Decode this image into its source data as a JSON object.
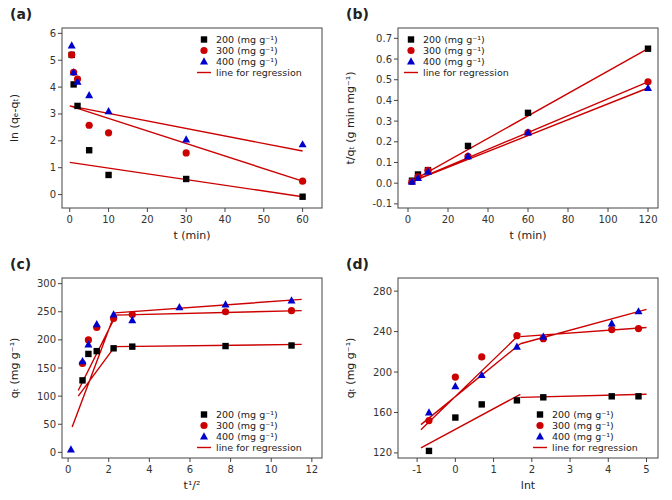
{
  "chart_data": [
    {
      "type": "scatter",
      "title": "(a)",
      "x_label": "t (min)",
      "y_label": "ln (qₑ-qₜ)",
      "xlim": [
        -2,
        65
      ],
      "ylim": [
        -0.5,
        6.2
      ],
      "xticks": [
        0,
        10,
        20,
        30,
        40,
        50,
        60
      ],
      "yticks": [
        0,
        1,
        2,
        3,
        4,
        5,
        6
      ],
      "grid": false,
      "legend": "upper right",
      "series": [
        {
          "name": "200 (mg g⁻¹)",
          "type": "scatter",
          "color": "#000000",
          "marker": "square",
          "x": [
            0.5,
            1,
            2,
            5,
            10,
            30,
            60
          ],
          "values": [
            5.2,
            4.1,
            3.3,
            1.65,
            0.73,
            0.58,
            -0.08
          ]
        },
        {
          "name": "300 (mg g⁻¹)",
          "type": "scatter",
          "color": "#cc0000",
          "marker": "circle",
          "x": [
            0.5,
            1,
            2,
            5,
            10,
            30,
            60
          ],
          "values": [
            5.2,
            4.55,
            4.3,
            2.58,
            2.3,
            1.55,
            0.5
          ]
        },
        {
          "name": "400 (mg g⁻¹)",
          "type": "scatter",
          "color": "#0000cc",
          "marker": "triangle",
          "x": [
            0.5,
            1,
            2,
            5,
            10,
            30,
            60
          ],
          "values": [
            5.55,
            4.55,
            4.2,
            3.7,
            3.1,
            2.05,
            1.87
          ]
        },
        {
          "name": "line for regression",
          "type": "line",
          "color": "#cc0000",
          "line_style": "solid",
          "x": [
            0,
            60,
            null,
            0,
            60,
            null,
            0,
            60
          ],
          "values": [
            1.2,
            -0.08,
            null,
            3.3,
            0.5,
            null,
            3.3,
            1.62
          ]
        }
      ]
    },
    {
      "type": "scatter",
      "title": "(b)",
      "x_label": "t (min)",
      "y_label": "t/qₜ (g min mg⁻¹)",
      "xlim": [
        -5,
        125
      ],
      "ylim": [
        -0.12,
        0.75
      ],
      "xticks": [
        0,
        20,
        40,
        60,
        80,
        100,
        120
      ],
      "yticks": [
        -0.1,
        {
          "value": 0.0,
          "label": "0.0"
        },
        0.1,
        0.2,
        0.3,
        0.4,
        0.5,
        0.6,
        0.7
      ],
      "grid": false,
      "legend": "upper left",
      "series": [
        {
          "name": "200 (mg g⁻¹)",
          "type": "scatter",
          "color": "#000000",
          "marker": "square",
          "x": [
            2,
            5,
            10,
            30,
            60,
            120
          ],
          "values": [
            0.012,
            0.042,
            0.063,
            0.18,
            0.34,
            0.65
          ]
        },
        {
          "name": "300 (mg g⁻¹)",
          "type": "scatter",
          "color": "#cc0000",
          "marker": "circle",
          "x": [
            2,
            5,
            10,
            30,
            60,
            120
          ],
          "values": [
            0.008,
            0.03,
            0.062,
            0.13,
            0.245,
            0.49
          ]
        },
        {
          "name": "400 (mg g⁻¹)",
          "type": "scatter",
          "color": "#0000cc",
          "marker": "triangle",
          "x": [
            2,
            5,
            10,
            30,
            60,
            120
          ],
          "values": [
            0.007,
            0.025,
            0.055,
            0.13,
            0.245,
            0.46
          ]
        },
        {
          "name": "line for regression",
          "type": "line",
          "color": "#cc0000",
          "line_style": "solid",
          "x": [
            0,
            120,
            null,
            0,
            120,
            null,
            0,
            120
          ],
          "values": [
            0.0,
            0.65,
            null,
            0.0,
            0.49,
            null,
            0.0,
            0.46
          ]
        }
      ]
    },
    {
      "type": "scatter",
      "title": "(c)",
      "x_label": "t¹/²",
      "y_label": "qₜ (mg g⁻¹)",
      "xlim": [
        -0.3,
        12.5
      ],
      "ylim": [
        -10,
        310
      ],
      "xticks": [
        0,
        2,
        4,
        6,
        8,
        10,
        12
      ],
      "yticks": [
        0,
        50,
        100,
        150,
        200,
        250,
        300
      ],
      "grid": false,
      "legend": "lower right",
      "series": [
        {
          "name": "200 (mg g⁻¹)",
          "type": "scatter",
          "color": "#000000",
          "marker": "square",
          "x": [
            0.71,
            1.0,
            1.41,
            2.24,
            3.16,
            7.75,
            11.0
          ],
          "values": [
            128,
            175,
            180,
            185,
            188,
            189,
            190
          ]
        },
        {
          "name": "300 (mg g⁻¹)",
          "type": "scatter",
          "color": "#cc0000",
          "marker": "circle",
          "x": [
            0.71,
            1.0,
            1.41,
            2.24,
            3.16,
            7.75,
            11.0
          ],
          "values": [
            158,
            200,
            222,
            238,
            245,
            250,
            252
          ]
        },
        {
          "name": "400 (mg g⁻¹)",
          "type": "scatter",
          "color": "#0000cc",
          "marker": "triangle",
          "x": [
            0.14,
            0.71,
            1.0,
            1.41,
            2.24,
            3.16,
            5.48,
            7.75,
            11.0
          ],
          "values": [
            5,
            162,
            192,
            228,
            245,
            235,
            258,
            263,
            270
          ]
        },
        {
          "name": "line for regression",
          "type": "line",
          "color": "#cc0000",
          "line_style": "solid",
          "x": [
            0.5,
            2.3,
            null,
            2.3,
            11.5,
            null,
            0.5,
            2.3,
            null,
            2.3,
            11.5,
            null,
            0.2,
            2.3,
            null,
            2.3,
            11.5
          ],
          "values": [
            100,
            188,
            null,
            188,
            192,
            null,
            110,
            240,
            null,
            244,
            252,
            null,
            45,
            247,
            null,
            248,
            272
          ]
        }
      ]
    },
    {
      "type": "scatter",
      "title": "(d)",
      "x_label": "lnt",
      "y_label": "qₜ (mg g⁻¹)",
      "xlim": [
        -1.5,
        5.3
      ],
      "ylim": [
        115,
        293
      ],
      "xticks": [
        -1,
        0,
        1,
        2,
        3,
        4,
        5
      ],
      "yticks": [
        120,
        160,
        200,
        240,
        280
      ],
      "grid": false,
      "legend": "lower right",
      "series": [
        {
          "name": "200 (mg g⁻¹)",
          "type": "scatter",
          "color": "#000000",
          "marker": "square",
          "x": [
            -0.69,
            0.0,
            0.69,
            1.61,
            2.3,
            4.09,
            4.79
          ],
          "values": [
            122,
            155,
            168,
            172,
            175,
            176,
            176
          ]
        },
        {
          "name": "300 (mg g⁻¹)",
          "type": "scatter",
          "color": "#cc0000",
          "marker": "circle",
          "x": [
            -0.69,
            0.0,
            0.69,
            1.61,
            2.3,
            4.09,
            4.79
          ],
          "values": [
            152,
            195,
            215,
            236,
            233,
            242,
            243
          ]
        },
        {
          "name": "400 (mg g⁻¹)",
          "type": "scatter",
          "color": "#0000cc",
          "marker": "triangle",
          "x": [
            -0.69,
            0.0,
            0.69,
            1.61,
            2.3,
            4.09,
            4.79
          ],
          "values": [
            160,
            186,
            197,
            225,
            235,
            248,
            260
          ]
        },
        {
          "name": "line for regression",
          "type": "line",
          "color": "#cc0000",
          "line_style": "solid",
          "x": [
            -0.9,
            1.7,
            null,
            1.7,
            5.0,
            null,
            -0.9,
            1.7,
            null,
            1.7,
            5.0,
            null,
            -0.9,
            1.7,
            null,
            1.7,
            5.0
          ],
          "values": [
            125,
            178,
            null,
            175,
            178,
            null,
            143,
            238,
            null,
            235,
            244,
            null,
            148,
            228,
            null,
            228,
            262
          ]
        }
      ]
    }
  ]
}
